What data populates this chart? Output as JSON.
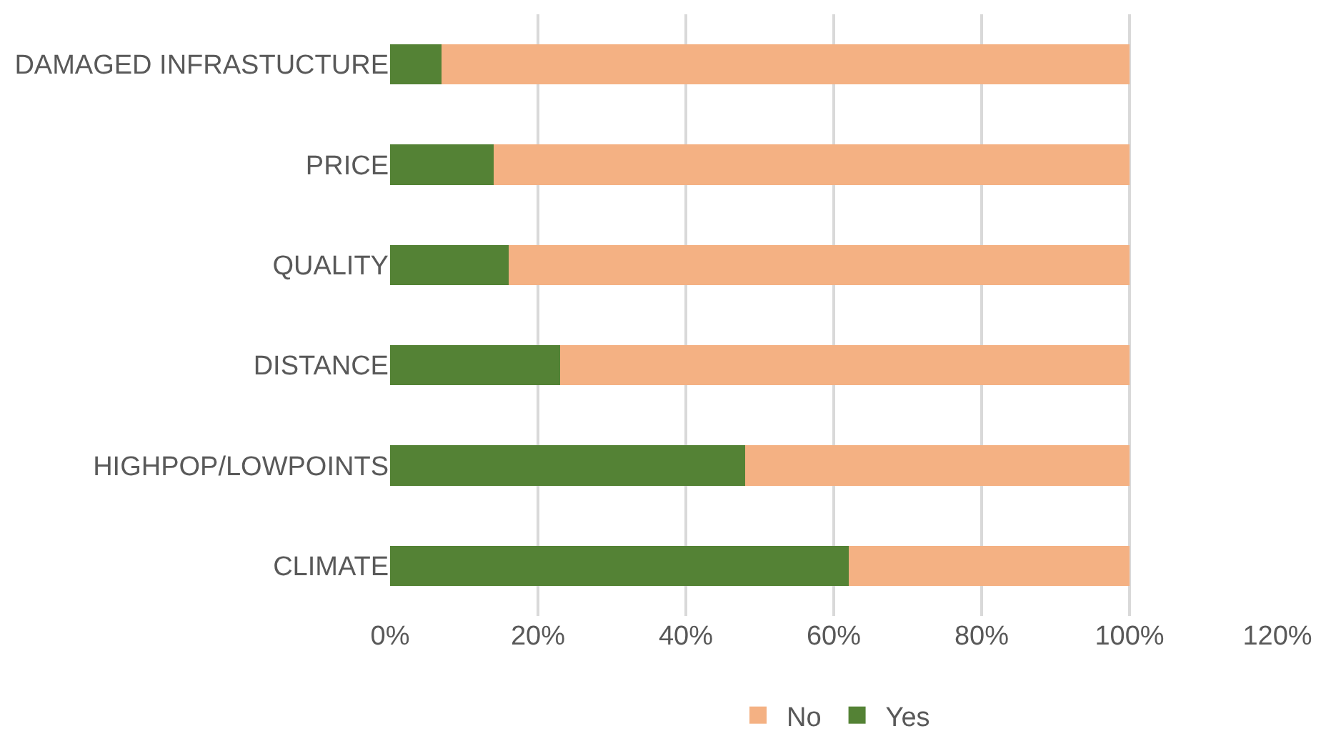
{
  "chart_data": {
    "type": "bar",
    "orientation": "horizontal",
    "stacked": true,
    "categories": [
      "DAMAGED INFRASTUCTURE",
      "PRICE",
      "QUALITY",
      "DISTANCE",
      "HIGHPOP/LOWPOINTS",
      "CLIMATE"
    ],
    "series": [
      {
        "name": "Yes",
        "color": "#548235",
        "values": [
          7,
          14,
          16,
          23,
          48,
          62
        ]
      },
      {
        "name": "No",
        "color": "#f4b183",
        "values": [
          93,
          86,
          84,
          77,
          52,
          38
        ]
      }
    ],
    "xlim": [
      0,
      120
    ],
    "xticks": [
      {
        "value": 0,
        "label": "0%"
      },
      {
        "value": 20,
        "label": "20%"
      },
      {
        "value": 40,
        "label": "40%"
      },
      {
        "value": 60,
        "label": "60%"
      },
      {
        "value": 80,
        "label": "80%"
      },
      {
        "value": 100,
        "label": "100%"
      },
      {
        "value": 120,
        "label": "120%"
      }
    ],
    "grid": "x",
    "legend": "bottom"
  }
}
